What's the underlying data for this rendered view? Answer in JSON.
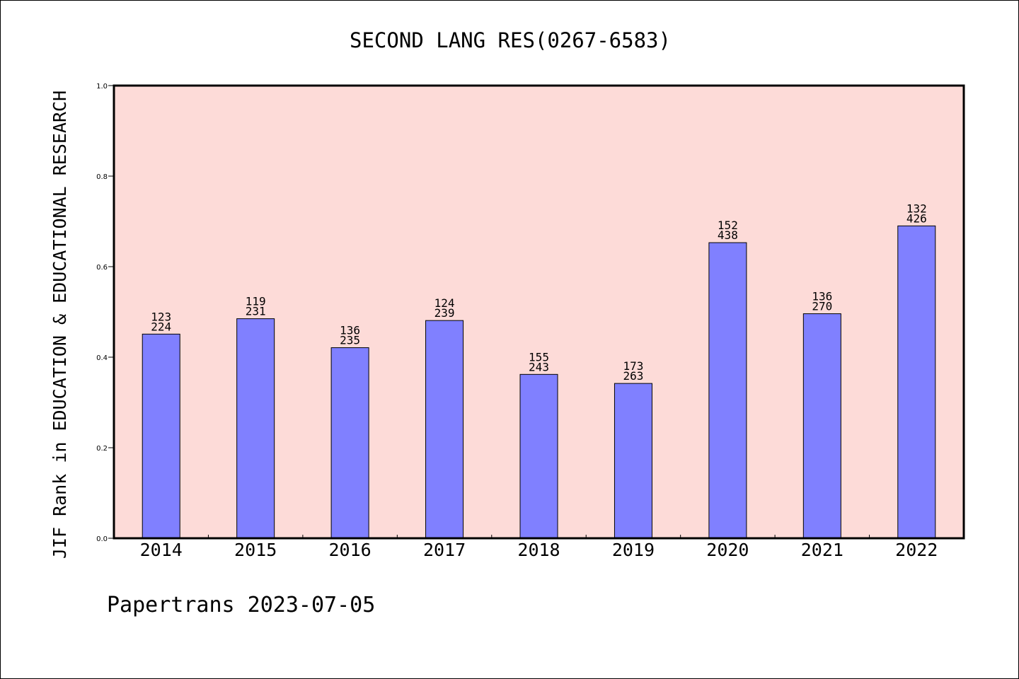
{
  "chart_data": {
    "type": "bar",
    "title": "SECOND LANG RES(0267-6583)",
    "xlabel": "",
    "ylabel": "JIF Rank in EDUCATION & EDUCATIONAL RESEARCH",
    "ylim": [
      0,
      1.0
    ],
    "yticks": [
      "0.0",
      "0.2",
      "0.4",
      "0.6",
      "0.8",
      "1.0"
    ],
    "categories": [
      "2014",
      "2015",
      "2016",
      "2017",
      "2018",
      "2019",
      "2020",
      "2021",
      "2022"
    ],
    "values": [
      0.451,
      0.485,
      0.421,
      0.481,
      0.362,
      0.342,
      0.653,
      0.496,
      0.69
    ],
    "labels": [
      [
        "123",
        "224"
      ],
      [
        "119",
        "231"
      ],
      [
        "136",
        "235"
      ],
      [
        "124",
        "239"
      ],
      [
        "155",
        "243"
      ],
      [
        "173",
        "263"
      ],
      [
        "152",
        "438"
      ],
      [
        "136",
        "270"
      ],
      [
        "132",
        "426"
      ]
    ],
    "grid": false,
    "colors": {
      "bar": "#8080ff",
      "plot_bg": "#fddbd8",
      "axis": "#000000"
    }
  },
  "footer": "Papertrans 2023-07-05"
}
